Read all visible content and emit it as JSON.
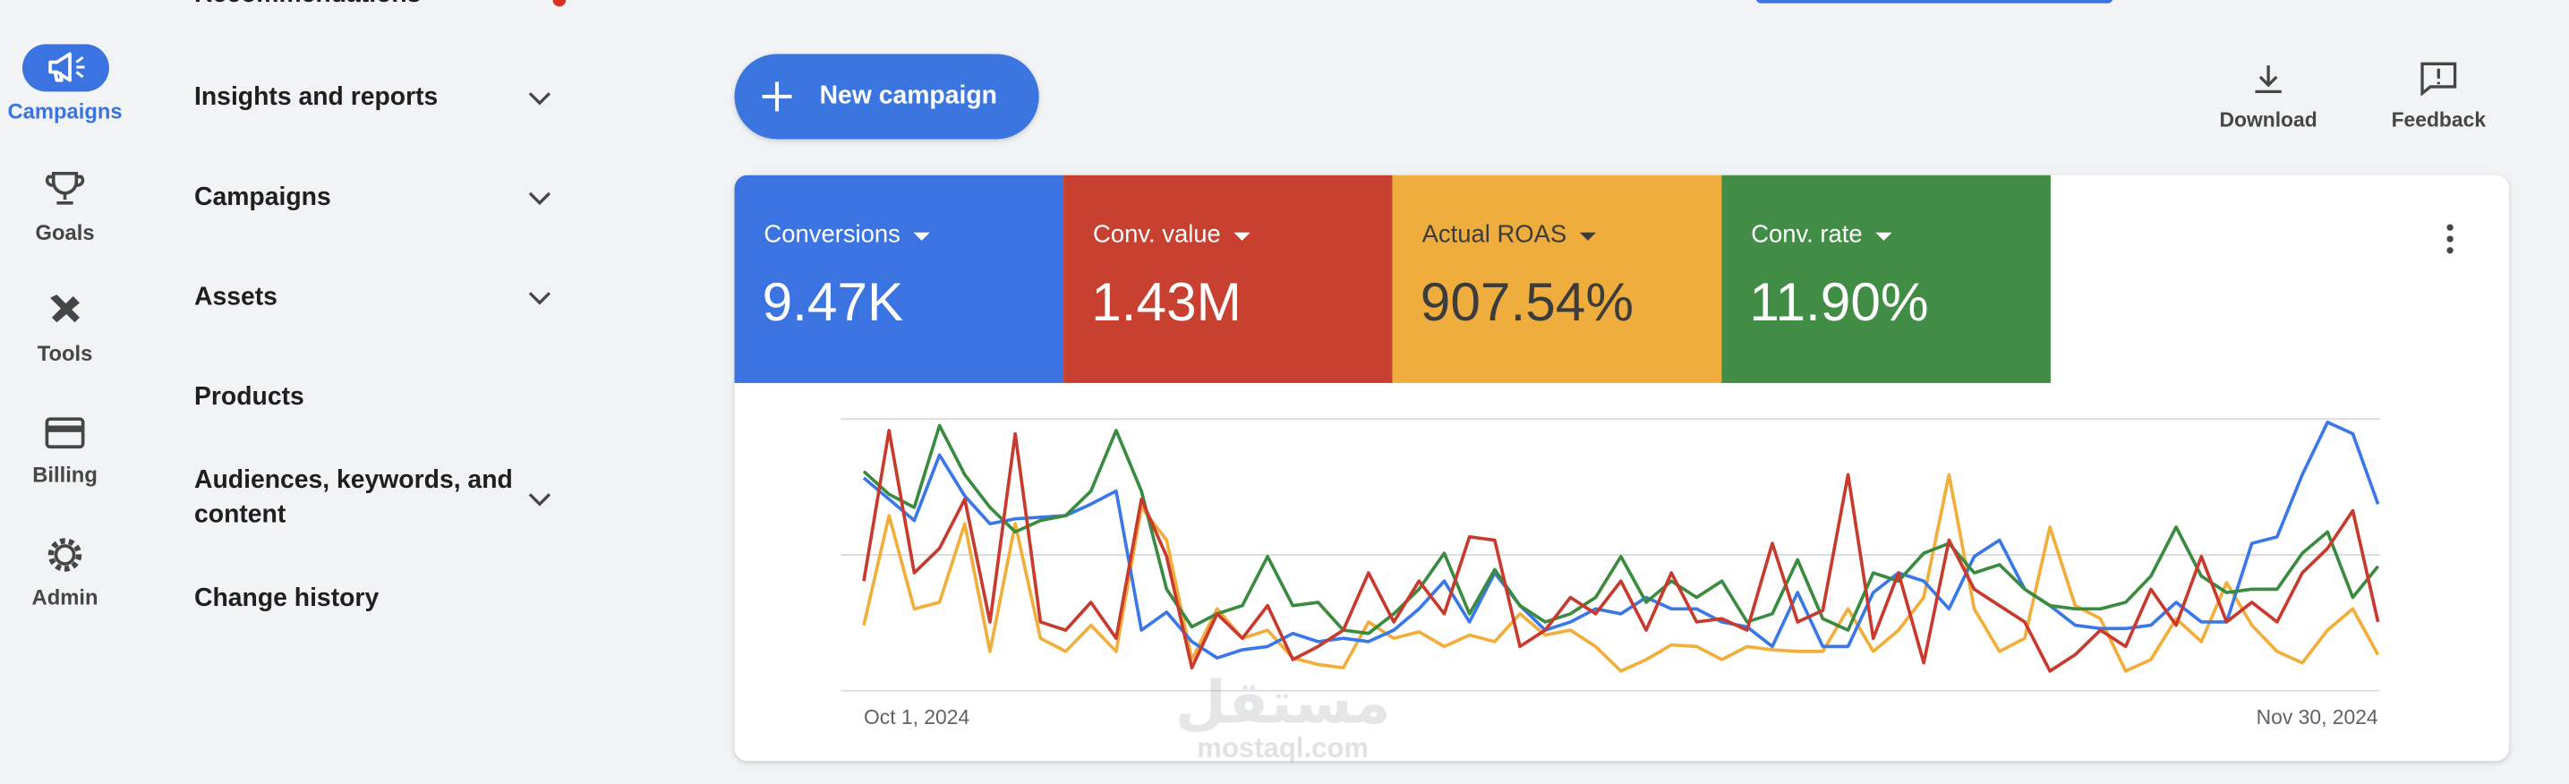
{
  "nav_rail": [
    "Campaigns",
    "Goals",
    "Tools",
    "Billing",
    "Admin"
  ],
  "menu": [
    "Recommendations",
    "Insights and reports",
    "Campaigns",
    "Assets",
    "Products",
    [
      "Audiences, keywords, and",
      "content"
    ],
    "Change history"
  ],
  "new_campaign": "New campaign",
  "actions": [
    "Download",
    "Feedback"
  ],
  "scorecards": [
    {
      "label": "Conversions",
      "value": "9.47K",
      "color": "#3b74e0"
    },
    {
      "label": "Conv. value",
      "value": "1.43M",
      "color": "#c8402f"
    },
    {
      "label": "Actual ROAS",
      "value": "907.54%",
      "color": "#efad3d"
    },
    {
      "label": "Conv. rate",
      "value": "11.90%",
      "color": "#428d46"
    }
  ],
  "watermark": [
    "مستقل",
    "mostaql.com"
  ],
  "chart_data": {
    "type": "line",
    "categories": [
      "Oct 1, 2024",
      null,
      null,
      null,
      null,
      null,
      null,
      null,
      null,
      null,
      null,
      null,
      null,
      null,
      null,
      null,
      null,
      null,
      null,
      null,
      null,
      null,
      null,
      null,
      null,
      null,
      null,
      null,
      null,
      null,
      null,
      null,
      null,
      null,
      null,
      null,
      null,
      null,
      null,
      null,
      null,
      null,
      null,
      null,
      null,
      null,
      null,
      null,
      null,
      null,
      null,
      null,
      null,
      null,
      null,
      null,
      null,
      null,
      null,
      null,
      "Nov 30, 2024"
    ],
    "ylim": [
      0,
      166
    ],
    "series": [
      {
        "color": "#f2ae3a",
        "values": [
          40,
          107,
          50,
          54,
          102,
          24,
          102,
          32,
          24,
          40,
          24,
          112,
          92,
          19,
          50,
          32,
          37,
          20,
          16,
          14,
          42,
          32,
          36,
          27,
          34,
          30,
          47,
          34,
          37,
          27,
          12,
          19,
          28,
          27,
          19,
          27,
          25,
          24,
          24,
          50,
          24,
          37,
          57,
          132,
          50,
          24,
          32,
          100,
          52,
          44,
          12,
          19,
          44,
          30,
          66,
          40,
          24,
          17,
          37,
          50,
          22
        ]
      },
      {
        "color": "#3b78e7",
        "values": [
          130,
          117,
          104,
          144,
          119,
          102,
          105,
          106,
          107,
          114,
          122,
          37,
          48,
          30,
          20,
          25,
          27,
          35,
          30,
          32,
          30,
          37,
          50,
          67,
          42,
          72,
          52,
          37,
          42,
          50,
          47,
          57,
          50,
          50,
          42,
          39,
          27,
          60,
          27,
          27,
          60,
          72,
          67,
          50,
          82,
          92,
          62,
          52,
          40,
          38,
          38,
          40,
          54,
          42,
          42,
          90,
          94,
          132,
          164,
          157,
          114
        ]
      },
      {
        "color": "#3a8b3f",
        "values": [
          134,
          120,
          112,
          162,
          132,
          112,
          97,
          104,
          107,
          122,
          159,
          122,
          62,
          39,
          47,
          52,
          82,
          52,
          54,
          37,
          35,
          47,
          62,
          84,
          47,
          74,
          52,
          42,
          47,
          57,
          82,
          54,
          67,
          57,
          67,
          42,
          47,
          80,
          44,
          37,
          72,
          67,
          84,
          90,
          72,
          77,
          62,
          52,
          50,
          50,
          54,
          70,
          100,
          70,
          60,
          62,
          62,
          84,
          97,
          57,
          76
        ]
      },
      {
        "color": "#c93a2e",
        "values": [
          67,
          159,
          72,
          87,
          117,
          42,
          157,
          42,
          37,
          54,
          32,
          117,
          82,
          14,
          47,
          32,
          52,
          19,
          27,
          37,
          72,
          42,
          67,
          47,
          94,
          92,
          27,
          37,
          57,
          47,
          67,
          37,
          72,
          42,
          44,
          37,
          90,
          42,
          49,
          132,
          32,
          72,
          17,
          92,
          62,
          52,
          42,
          12,
          22,
          37,
          27,
          62,
          40,
          82,
          42,
          54,
          42,
          72,
          87,
          110,
          42
        ]
      }
    ]
  }
}
